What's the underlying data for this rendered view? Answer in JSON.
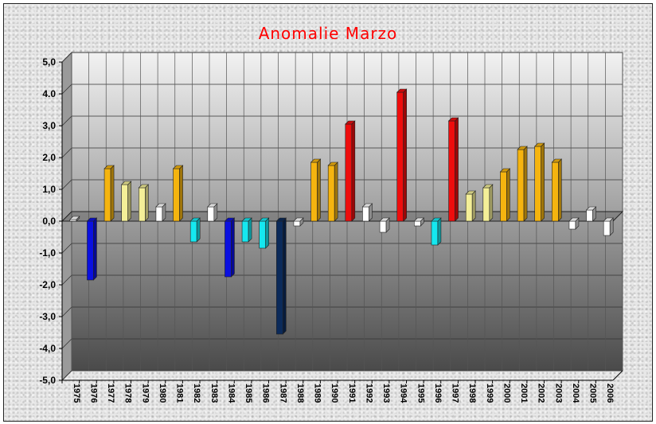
{
  "chart_data": {
    "type": "bar",
    "title": "Anomalie Marzo",
    "xlabel": "",
    "ylabel": "",
    "ylim": [
      -5,
      5
    ],
    "grid": true,
    "legend": "none",
    "y_tick_labels": [
      "5,0",
      "4.0",
      "3,0",
      "2,0",
      "1,0",
      "0,0",
      "-1,0",
      "-2,0",
      "-3,0",
      "-4,0",
      "-5,0"
    ],
    "categories": [
      "1975",
      "1976",
      "1977",
      "1978",
      "1979",
      "1980",
      "1981",
      "1982",
      "1983",
      "1984",
      "1985",
      "1986",
      "1987",
      "1988",
      "1989",
      "1990",
      "1991",
      "1992",
      "1993",
      "1994",
      "1995",
      "1996",
      "1997",
      "1998",
      "1999",
      "2000",
      "2001",
      "2002",
      "2003",
      "2004",
      "2005",
      "2006"
    ],
    "values": [
      0.05,
      -1.85,
      1.65,
      1.15,
      1.05,
      0.45,
      1.65,
      -0.65,
      0.45,
      -1.75,
      -0.65,
      -0.85,
      -3.55,
      -0.15,
      1.85,
      1.75,
      3.05,
      0.45,
      -0.35,
      4.05,
      -0.15,
      -0.75,
      3.15,
      0.85,
      1.05,
      1.55,
      2.25,
      2.35,
      1.85,
      -0.25,
      0.35,
      -0.45
    ],
    "colors": {
      "strong_negative": "#0b2a5a",
      "negative": "#0a10e0",
      "mild_negative": "#15e8f0",
      "near_zero": "#ffffff",
      "mild_positive": "#f4ef98",
      "positive": "#f5b40f",
      "strong_positive": "#ee0d0d",
      "title": "#ff0000"
    }
  }
}
